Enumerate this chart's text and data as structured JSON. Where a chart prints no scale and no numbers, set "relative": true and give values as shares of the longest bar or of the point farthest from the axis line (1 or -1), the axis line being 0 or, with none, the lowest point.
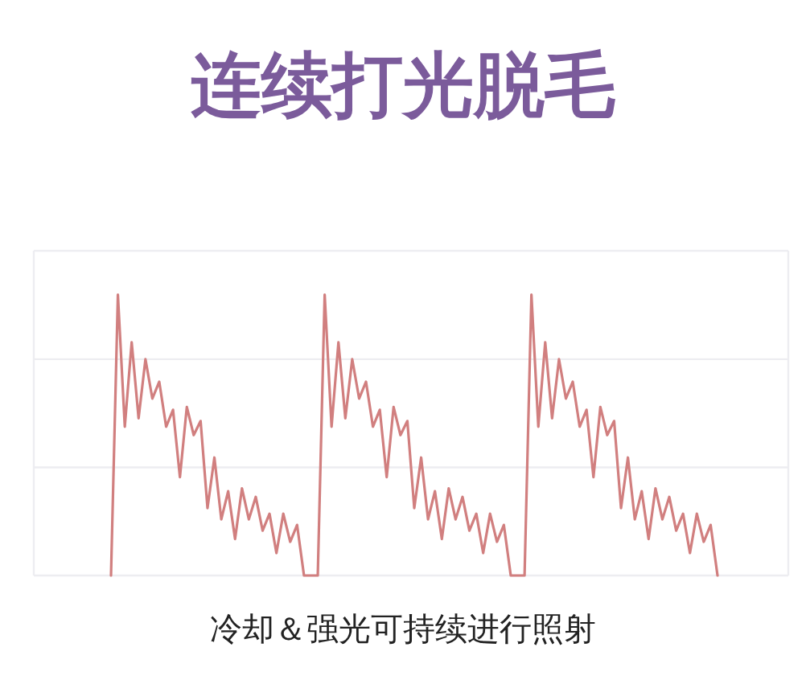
{
  "chart_data": {
    "type": "line",
    "title": "连续打光脱毛",
    "relative": true,
    "line_style": "solid",
    "ref_lines": [
      {
        "axis": "y",
        "value": 0.385,
        "color": "#ededf1",
        "line_style": "solid"
      },
      {
        "axis": "y",
        "value": 0.77,
        "color": "#ededf1",
        "line_style": "solid"
      }
    ],
    "annotations": [
      "冷却＆强光可持续进行照射"
    ],
    "categories": [
      null,
      null,
      null,
      null,
      null,
      null,
      null,
      null,
      null,
      null,
      null,
      null,
      null,
      null,
      null,
      null,
      null,
      null,
      null,
      null,
      null,
      null,
      null,
      null,
      null,
      null,
      null,
      null,
      null,
      null,
      null,
      null,
      null,
      null,
      null,
      null,
      null,
      null,
      null,
      null,
      null,
      null,
      null,
      null,
      null,
      null,
      null,
      null,
      null,
      null,
      null,
      null,
      null,
      null,
      null,
      null,
      null,
      null,
      null,
      null,
      null,
      null,
      null,
      null,
      null,
      null,
      null,
      null,
      null,
      null,
      null,
      null,
      null,
      null,
      null,
      null,
      null,
      null,
      null,
      null,
      null,
      null,
      null,
      null,
      null,
      null,
      null,
      null,
      null
    ],
    "series": [
      {
        "color": "#d17f7f",
        "values": [
          0,
          1,
          0.53,
          0.83,
          0.56,
          0.77,
          0.63,
          0.69,
          0.53,
          0.59,
          0.35,
          0.6,
          0.5,
          0.55,
          0.24,
          0.42,
          0.2,
          0.3,
          0.13,
          0.31,
          0.2,
          0.28,
          0.16,
          0.22,
          0.08,
          0.22,
          0.12,
          0.18,
          0,
          0,
          0,
          1,
          0.53,
          0.83,
          0.56,
          0.77,
          0.63,
          0.69,
          0.53,
          0.59,
          0.35,
          0.6,
          0.5,
          0.55,
          0.24,
          0.42,
          0.2,
          0.3,
          0.13,
          0.31,
          0.2,
          0.28,
          0.16,
          0.22,
          0.08,
          0.22,
          0.12,
          0.18,
          0,
          0,
          0,
          1,
          0.53,
          0.83,
          0.56,
          0.77,
          0.63,
          0.69,
          0.53,
          0.59,
          0.35,
          0.6,
          0.5,
          0.55,
          0.24,
          0.42,
          0.2,
          0.3,
          0.13,
          0.31,
          0.2,
          0.28,
          0.16,
          0.22,
          0.08,
          0.22,
          0.12,
          0.18,
          0
        ]
      }
    ]
  }
}
